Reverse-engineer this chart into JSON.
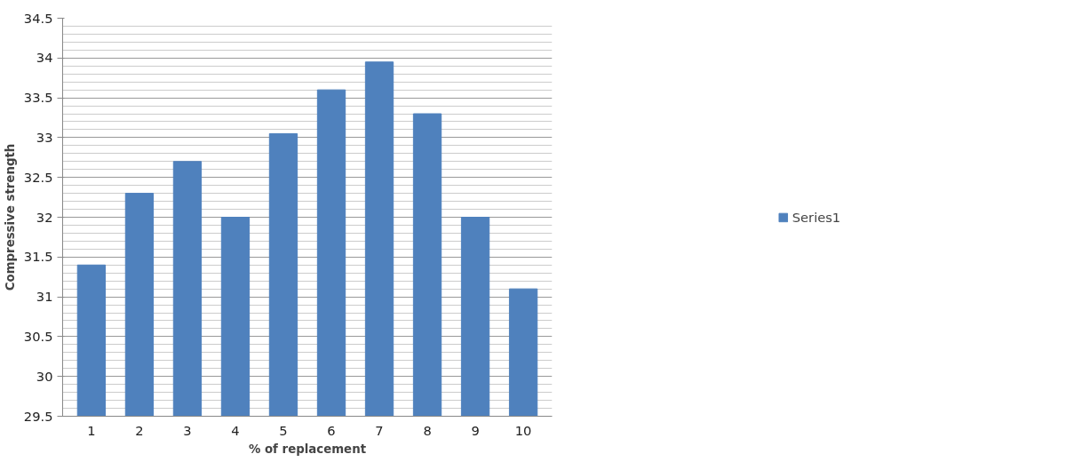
{
  "chart_data": {
    "type": "bar",
    "xlabel": "% of replacement",
    "ylabel": "Compressive strength",
    "categories": [
      "1",
      "2",
      "3",
      "4",
      "5",
      "6",
      "7",
      "8",
      "9",
      "10"
    ],
    "series": [
      {
        "name": "Series1",
        "color": "#4f81bd",
        "values": [
          31.4,
          32.3,
          32.7,
          32.0,
          33.05,
          33.6,
          33.95,
          33.3,
          32.0,
          31.1
        ]
      }
    ],
    "ylim": [
      29.5,
      34.5
    ],
    "yticks": [
      29.5,
      30,
      30.5,
      31,
      31.5,
      32,
      32.5,
      33,
      33.5,
      34,
      34.5
    ],
    "grid": "y",
    "legend": "right"
  }
}
